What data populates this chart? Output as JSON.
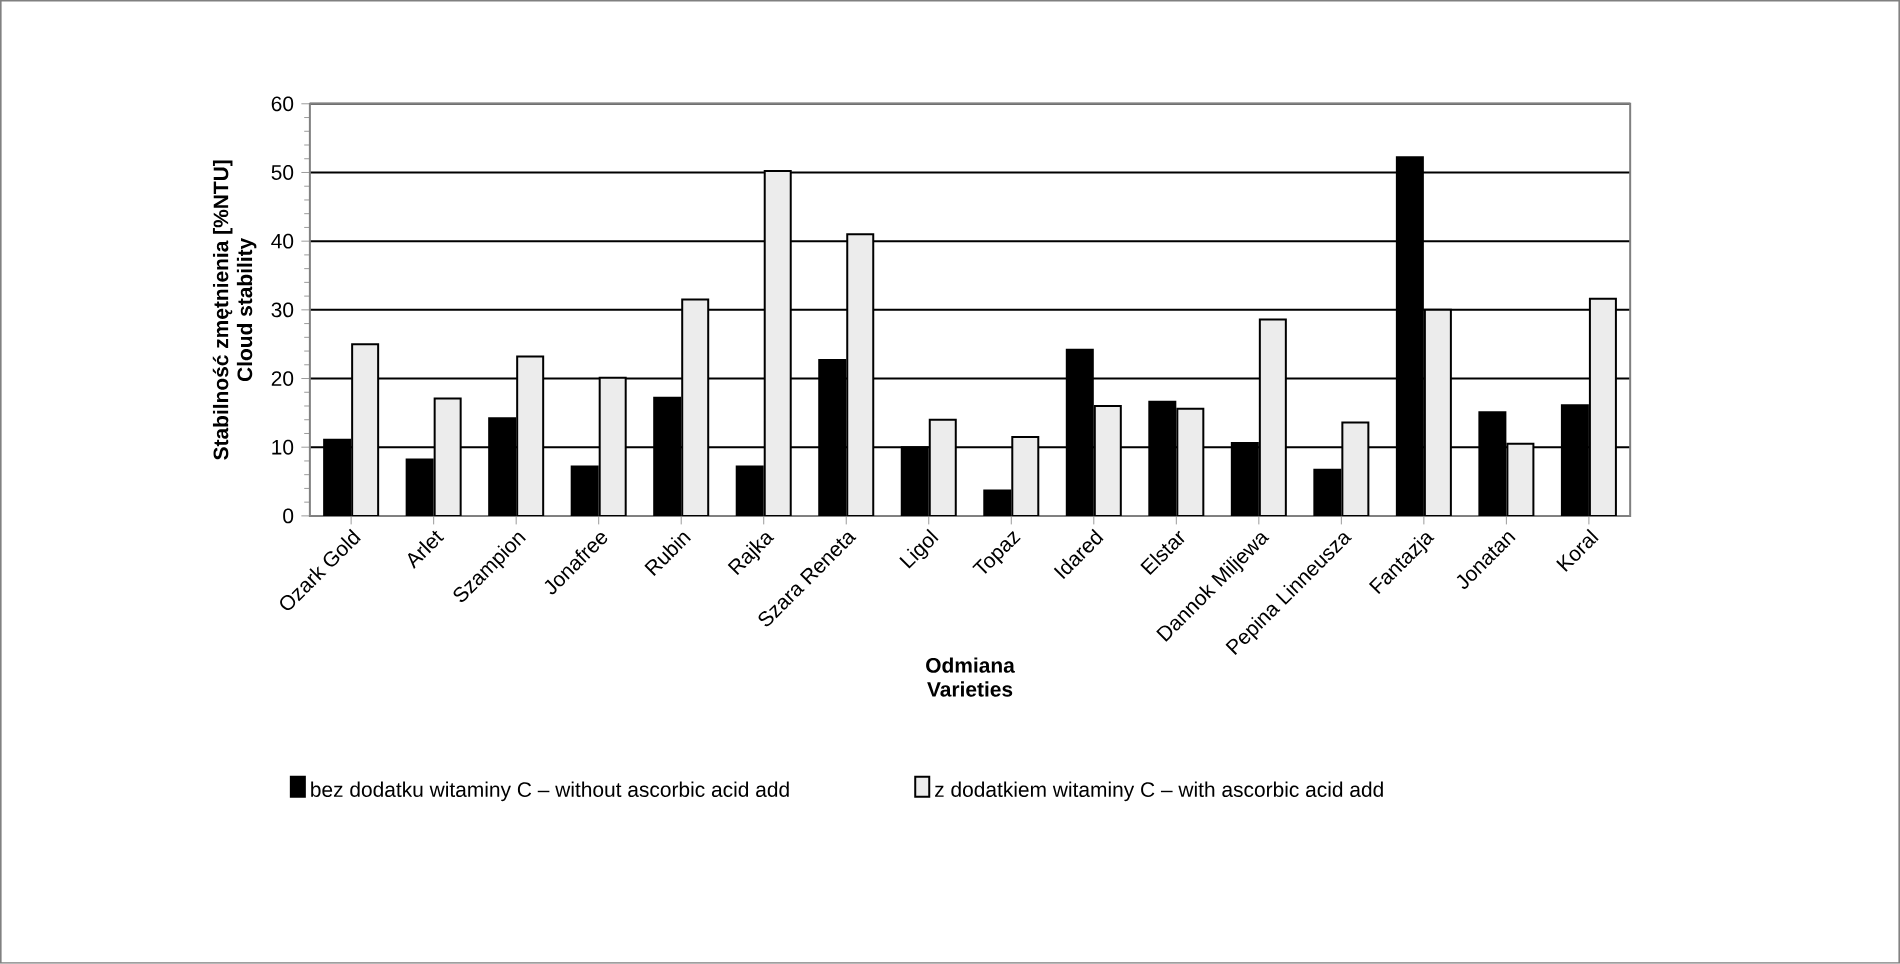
{
  "chart_data": {
    "type": "bar",
    "xlabel": "Odmiana\nVarieties",
    "ylabel": "Stabilność zmętnienia [%NTU]\nCloud stability",
    "categories": [
      "Ozark Gold",
      "Arlet",
      "Szampion",
      "Jonafree",
      "Rubin",
      "Rajka",
      "Szara Reneta",
      "Ligol",
      "Topaz",
      "Idared",
      "Elstar",
      "Dannok Miljewa",
      "Pepina Linneusza",
      "Fantazja",
      "Jonatan",
      "Koral"
    ],
    "series": [
      {
        "name": "bez dodatku witaminy C – without ascorbic acid add",
        "color": "#000000",
        "values": [
          11.1,
          8.2,
          14.2,
          7.2,
          17.2,
          7.2,
          22.7,
          10,
          3.7,
          24.2,
          16.6,
          10.6,
          6.7,
          52.2,
          15.1,
          16.1
        ]
      },
      {
        "name": "z dodatkiem witaminy C – with ascorbic acid add",
        "color": "#ececec",
        "values": [
          25,
          17.1,
          23.2,
          20.1,
          31.5,
          50.2,
          41,
          14,
          11.5,
          16,
          15.6,
          28.6,
          13.6,
          30,
          10.5,
          31.6
        ]
      }
    ],
    "ylim": [
      0,
      60
    ],
    "yticks": [
      0,
      10,
      20,
      30,
      40,
      50,
      60
    ],
    "grid": "y",
    "legend": "bottom"
  }
}
